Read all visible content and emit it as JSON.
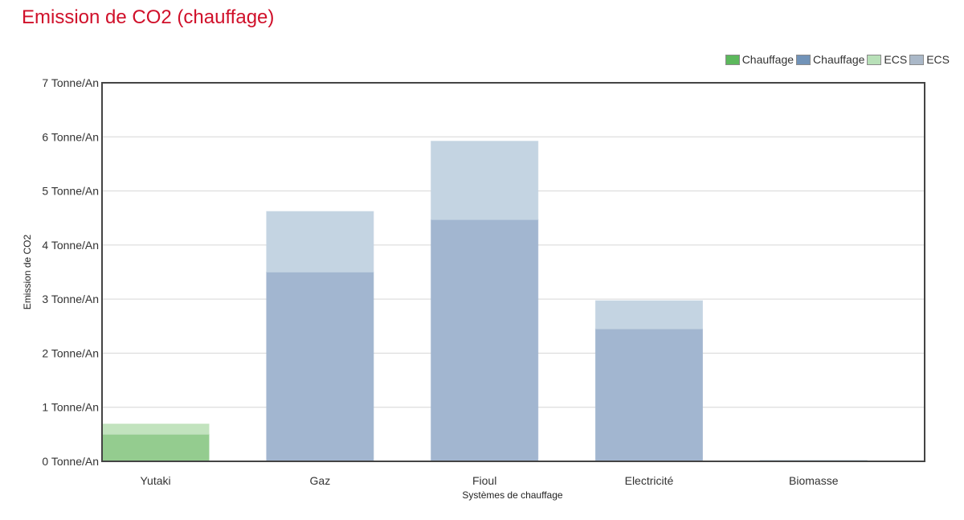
{
  "title": "Emission de CO2 (chauffage)",
  "legend": [
    {
      "label": "Chauffage",
      "color": "#5cb85c"
    },
    {
      "label": "Chauffage",
      "color": "#7193b8"
    },
    {
      "label": "ECS",
      "color": "#b8e0b8"
    },
    {
      "label": "ECS",
      "color": "#aab8c8"
    }
  ],
  "chart_data": {
    "type": "bar",
    "stacked": true,
    "title": "Emission de CO2 (chauffage)",
    "xlabel": "Systèmes de chauffage",
    "ylabel": "Emission de CO2",
    "ylim": [
      0,
      7
    ],
    "y_ticks": [
      "0 Tonne/An",
      "1 Tonne/An",
      "2 Tonne/An",
      "3 Tonne/An",
      "4 Tonne/An",
      "5 Tonne/An",
      "6 Tonne/An",
      "7 Tonne/An"
    ],
    "categories": [
      "Yutaki",
      "Gaz",
      "Fioul",
      "Electricité",
      "Biomasse"
    ],
    "series": [
      {
        "name": "Chauffage",
        "stack": "base",
        "values": [
          0.5,
          3.5,
          4.47,
          2.45,
          0.0
        ],
        "colors": [
          "#94cc8f",
          "#a2b6d0",
          "#a2b6d0",
          "#a2b6d0",
          "#a2b6d0"
        ]
      },
      {
        "name": "ECS",
        "stack": "top",
        "values": [
          0.19,
          1.12,
          1.45,
          0.52,
          0.02
        ],
        "colors": [
          "#c2e3be",
          "#c4d4e2",
          "#c4d4e2",
          "#c4d4e2",
          "#c4d4e2"
        ]
      }
    ],
    "grid": true,
    "legend_position": "top-right"
  }
}
